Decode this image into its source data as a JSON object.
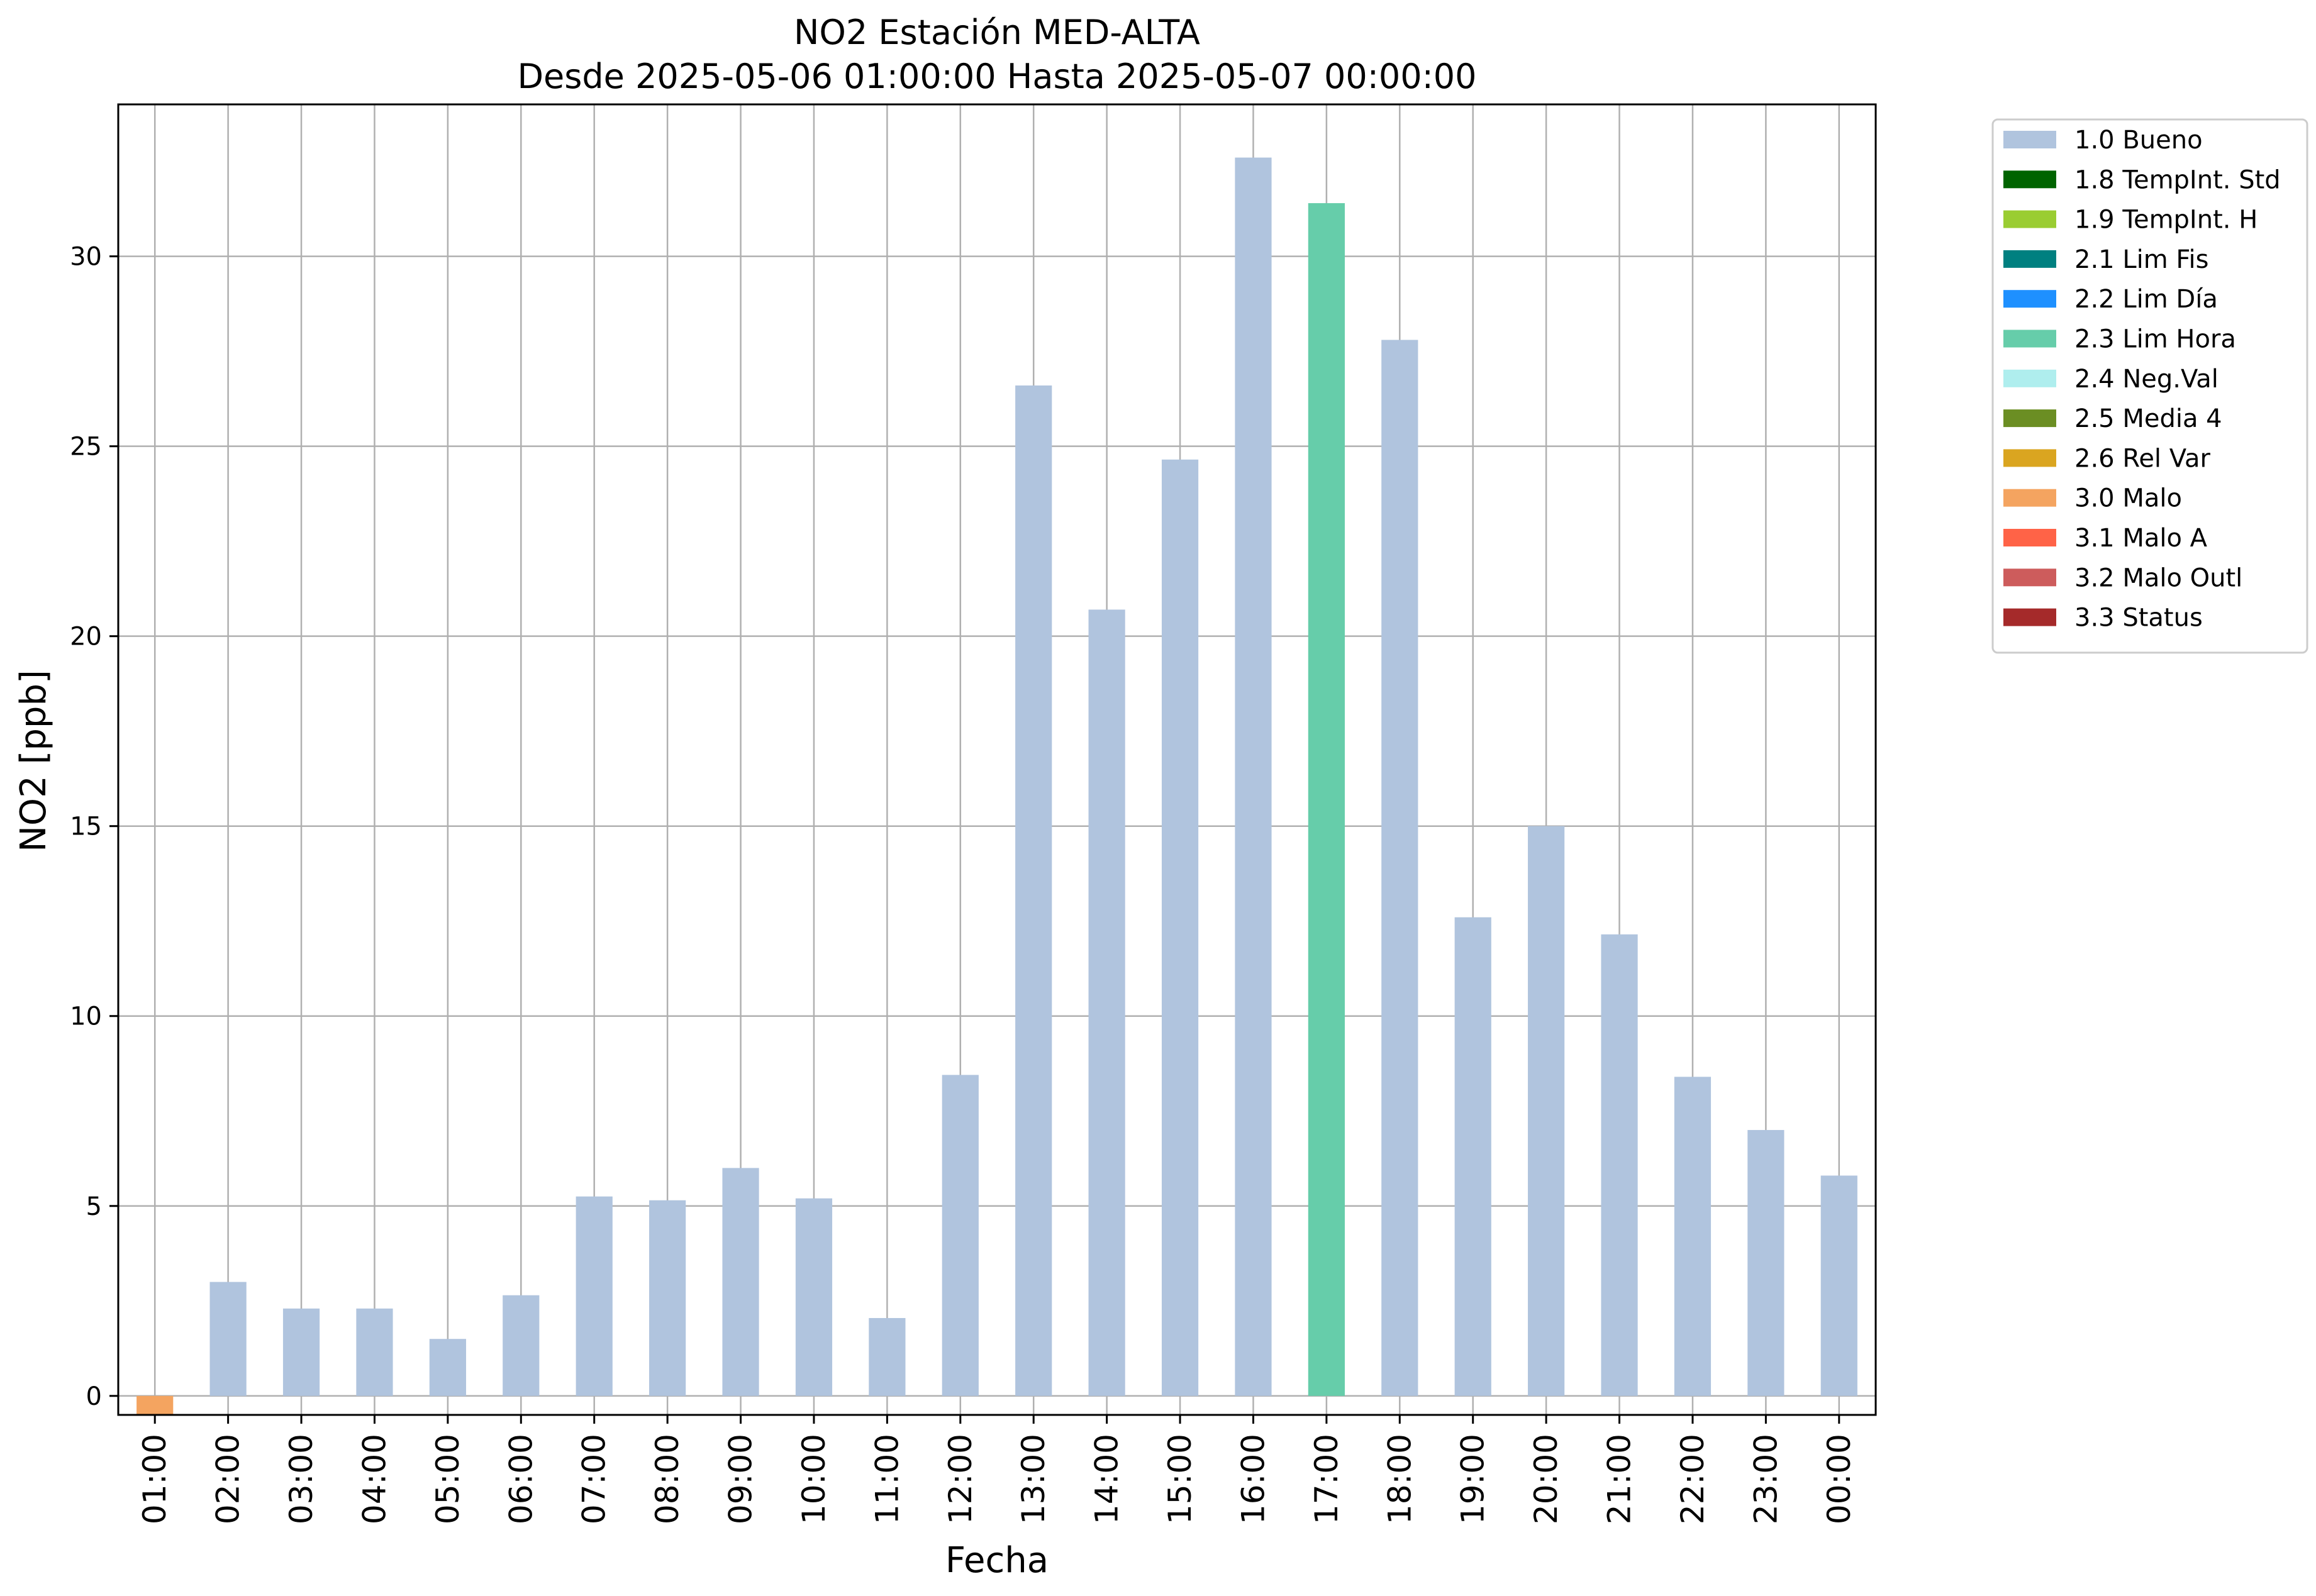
{
  "chart_data": {
    "type": "bar",
    "title": "NO2 Estación MED-ALTA",
    "subtitle": "Desde 2025-05-06 01:00:00 Hasta 2025-05-07 00:00:00",
    "xlabel": "Fecha",
    "ylabel": "NO2 [ppb]",
    "ylim": [
      -0.5,
      34.0
    ],
    "yticks": [
      0,
      5,
      10,
      15,
      20,
      25,
      30
    ],
    "grid": true,
    "legend_position": "outside-top-right",
    "categories": [
      "01:00",
      "02:00",
      "03:00",
      "04:00",
      "05:00",
      "06:00",
      "07:00",
      "08:00",
      "09:00",
      "10:00",
      "11:00",
      "12:00",
      "13:00",
      "14:00",
      "15:00",
      "16:00",
      "17:00",
      "18:00",
      "19:00",
      "20:00",
      "21:00",
      "22:00",
      "23:00",
      "00:00"
    ],
    "values": [
      -0.5,
      3.0,
      2.3,
      2.3,
      1.5,
      2.65,
      5.25,
      5.15,
      6.0,
      5.2,
      2.05,
      8.45,
      26.6,
      20.7,
      24.65,
      32.6,
      31.4,
      27.8,
      12.6,
      15.0,
      12.15,
      8.4,
      7.0,
      5.8
    ],
    "flags": [
      "3.0 Malo",
      "1.0 Bueno",
      "1.0 Bueno",
      "1.0 Bueno",
      "1.0 Bueno",
      "1.0 Bueno",
      "1.0 Bueno",
      "1.0 Bueno",
      "1.0 Bueno",
      "1.0 Bueno",
      "1.0 Bueno",
      "1.0 Bueno",
      "1.0 Bueno",
      "1.0 Bueno",
      "1.0 Bueno",
      "1.0 Bueno",
      "2.3 Lim Hora",
      "1.0 Bueno",
      "1.0 Bueno",
      "1.0 Bueno",
      "1.0 Bueno",
      "1.0 Bueno",
      "1.0 Bueno",
      "1.0 Bueno"
    ],
    "legend": [
      {
        "label": "1.0 Bueno",
        "color": "#b0c4de"
      },
      {
        "label": "1.8 TempInt. Std",
        "color": "#006400"
      },
      {
        "label": "1.9 TempInt. H",
        "color": "#9acd32"
      },
      {
        "label": "2.1 Lim Fis",
        "color": "#008080"
      },
      {
        "label": "2.2 Lim Día",
        "color": "#1e90ff"
      },
      {
        "label": "2.3 Lim Hora",
        "color": "#66cdaa"
      },
      {
        "label": "2.4 Neg.Val",
        "color": "#afeeee"
      },
      {
        "label": "2.5 Media 4",
        "color": "#6b8e23"
      },
      {
        "label": "2.6 Rel Var",
        "color": "#daa520"
      },
      {
        "label": "3.0 Malo",
        "color": "#f4a460"
      },
      {
        "label": "3.1 Malo A",
        "color": "#ff6347"
      },
      {
        "label": "3.2 Malo Outl",
        "color": "#cd5c5c"
      },
      {
        "label": "3.3 Status",
        "color": "#a52a2a"
      }
    ]
  }
}
